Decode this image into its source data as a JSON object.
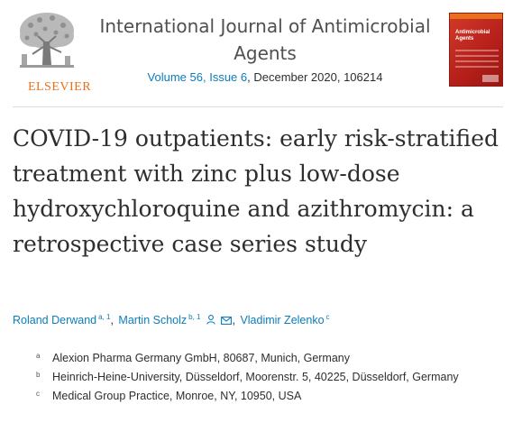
{
  "header": {
    "publisher": "ELSEVIER",
    "journal_title": "International Journal of Antimicrobial Agents",
    "volume_issue": "Volume 56, Issue 6",
    "date_id": ", December 2020, 106214",
    "cover_text": "Antimicrobial Agents"
  },
  "article": {
    "title": "COVID-19 outpatients: early risk-stratified treatment with zinc plus low-dose hydroxychloroquine and azithromycin: a retrospective case series study"
  },
  "authors": [
    {
      "name": "Roland Derwand",
      "sup": "a, 1"
    },
    {
      "name": "Martin Scholz",
      "sup": "b, 1"
    },
    {
      "name": "Vladimir Zelenko",
      "sup": "c"
    }
  ],
  "author_separator": ",",
  "affiliations": [
    {
      "label": "a",
      "text": "Alexion Pharma Germany GmbH, 80687, Munich, Germany"
    },
    {
      "label": "b",
      "text": "Heinrich-Heine-University, Düsseldorf, Moorenstr. 5, 40225, Düsseldorf, Germany"
    },
    {
      "label": "c",
      "text": "Medical Group Practice, Monroe, NY, 10950, USA"
    }
  ],
  "colors": {
    "link": "#0c7dbb",
    "publisher_orange": "#e9711c",
    "cover_red": "#c0281f",
    "text": "#2e2e2e"
  },
  "icons": [
    "elsevier-tree-logo",
    "person-icon",
    "envelope-icon"
  ]
}
